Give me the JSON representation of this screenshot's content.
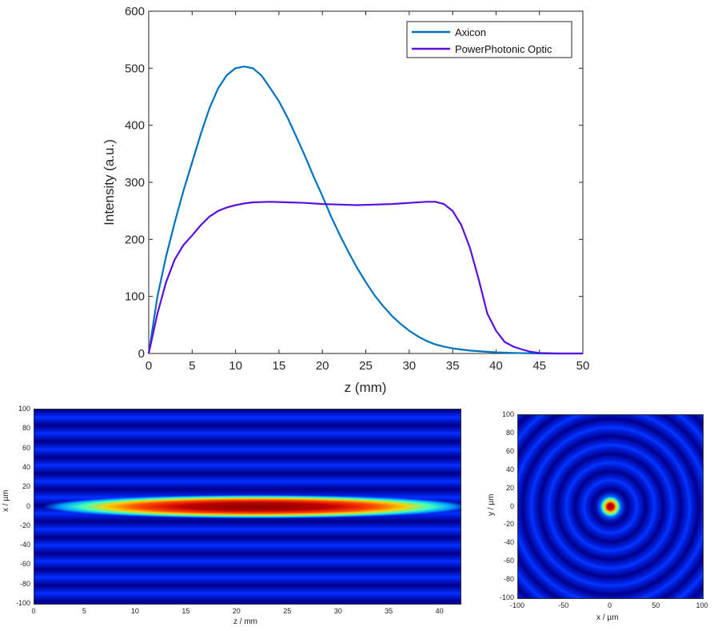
{
  "chart_data": [
    {
      "type": "line",
      "title": "",
      "xlabel": "z (mm)",
      "ylabel": "Intensity (a.u.)",
      "xlim": [
        0,
        50
      ],
      "ylim": [
        0,
        600
      ],
      "xticks": [
        "0",
        "5",
        "10",
        "15",
        "20",
        "25",
        "30",
        "35",
        "40",
        "45",
        "50"
      ],
      "yticks": [
        "0",
        "100",
        "200",
        "300",
        "400",
        "500",
        "600"
      ],
      "legend_position": "top-right",
      "series": [
        {
          "name": "Axicon",
          "color": "#0072BD",
          "x": [
            0,
            1,
            2,
            3,
            4,
            5,
            6,
            7,
            8,
            9,
            10,
            11,
            12,
            13,
            14,
            15,
            16,
            17,
            18,
            19,
            20,
            21,
            22,
            23,
            24,
            25,
            26,
            27,
            28,
            29,
            30,
            31,
            32,
            33,
            34,
            35,
            36,
            37,
            38,
            40,
            42,
            45,
            50
          ],
          "y": [
            0,
            100,
            170,
            230,
            285,
            335,
            385,
            430,
            465,
            488,
            500,
            503,
            500,
            487,
            465,
            442,
            413,
            380,
            346,
            310,
            276,
            240,
            208,
            178,
            150,
            125,
            102,
            83,
            66,
            52,
            40,
            30,
            22,
            16,
            12,
            9,
            7,
            5,
            4,
            2,
            1,
            0,
            0
          ]
        },
        {
          "name": "PowerPhotonic Optic",
          "color": "#5A10E0",
          "x": [
            0,
            1,
            2,
            3,
            4,
            5,
            6,
            7,
            8,
            9,
            10,
            11,
            12,
            14,
            16,
            18,
            20,
            22,
            24,
            26,
            28,
            30,
            32,
            33,
            34,
            35,
            36,
            37,
            38,
            39,
            40,
            41,
            42,
            43,
            44,
            45,
            47,
            50
          ],
          "y": [
            0,
            70,
            125,
            165,
            190,
            207,
            225,
            240,
            250,
            256,
            260,
            263,
            265,
            266,
            265,
            264,
            262,
            261,
            260,
            261,
            262,
            264,
            266,
            266,
            262,
            250,
            225,
            185,
            130,
            70,
            40,
            20,
            12,
            7,
            3,
            1,
            0,
            0
          ]
        }
      ]
    },
    {
      "type": "heatmap",
      "xlabel": "z / mm",
      "ylabel": "x / µm",
      "xlim": [
        0,
        42
      ],
      "ylim": [
        -100,
        100
      ],
      "xticks": [
        "0",
        "5",
        "10",
        "15",
        "20",
        "25",
        "30",
        "35",
        "40"
      ],
      "yticks": [
        "100",
        "80",
        "60",
        "40",
        "20",
        "0",
        "-20",
        "-40",
        "-60",
        "-80",
        "-100"
      ]
    },
    {
      "type": "heatmap",
      "xlabel": "x / µm",
      "ylabel": "y / µm",
      "xlim": [
        -100,
        100
      ],
      "ylim": [
        -100,
        100
      ],
      "xticks": [
        "-100",
        "-50",
        "0",
        "50",
        "100"
      ],
      "yticks": [
        "100",
        "80",
        "60",
        "40",
        "20",
        "0",
        "-20",
        "-40",
        "-60",
        "-80",
        "-100"
      ]
    }
  ]
}
